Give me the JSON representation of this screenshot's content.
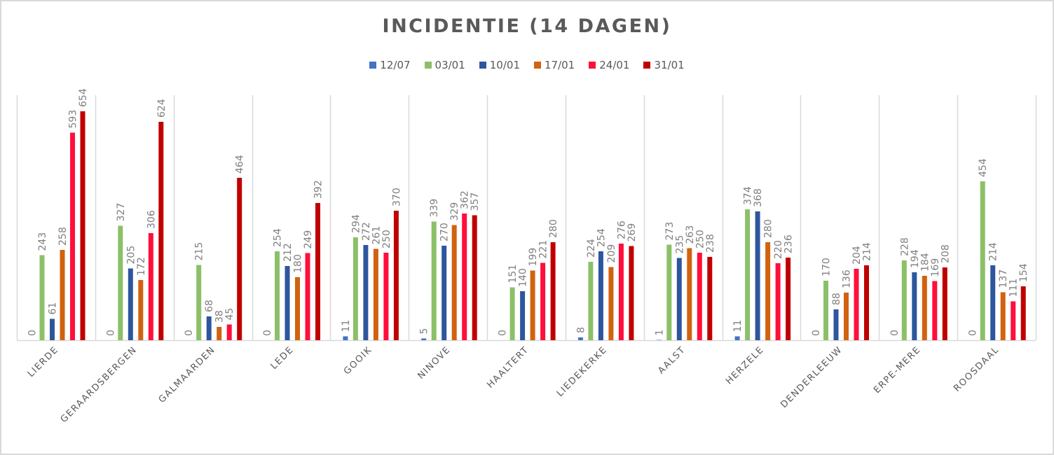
{
  "chart_data": {
    "type": "bar",
    "title": "INCIDENTIE  (14 DAGEN)",
    "xlabel": "",
    "ylabel": "",
    "ylim": [
      0,
      660
    ],
    "grid": false,
    "legend_position": "top",
    "categories": [
      "LIERDE",
      "GERAARDSBERGEN",
      "GALMAARDEN",
      "LEDE",
      "GOOIK",
      "NINOVE",
      "HAALTERT",
      "LIEDEKERKE",
      "AALST",
      "HERZELE",
      "DENDERLEEUW",
      "ERPE-MERE",
      "ROOSDAAL"
    ],
    "series": [
      {
        "name": "12/07",
        "color": "#4472c4",
        "values": [
          0,
          0,
          0,
          0,
          11,
          5,
          0,
          8,
          1,
          11,
          0,
          0,
          0
        ]
      },
      {
        "name": "03/01",
        "color": "#8cc068",
        "values": [
          243,
          327,
          215,
          254,
          294,
          339,
          151,
          224,
          273,
          374,
          170,
          228,
          454
        ]
      },
      {
        "name": "10/01",
        "color": "#2e569e",
        "values": [
          61,
          205,
          68,
          212,
          272,
          270,
          140,
          254,
          235,
          368,
          88,
          194,
          214
        ]
      },
      {
        "name": "17/01",
        "color": "#d1620f",
        "values": [
          258,
          172,
          38,
          180,
          261,
          329,
          199,
          209,
          263,
          280,
          136,
          184,
          137
        ]
      },
      {
        "name": "24/01",
        "color": "#ff0f3c",
        "values": [
          593,
          306,
          45,
          249,
          250,
          362,
          221,
          276,
          250,
          220,
          204,
          169,
          111
        ]
      },
      {
        "name": "31/01",
        "color": "#c00000",
        "values": [
          654,
          624,
          464,
          392,
          370,
          357,
          280,
          269,
          238,
          236,
          214,
          208,
          154
        ]
      }
    ]
  }
}
